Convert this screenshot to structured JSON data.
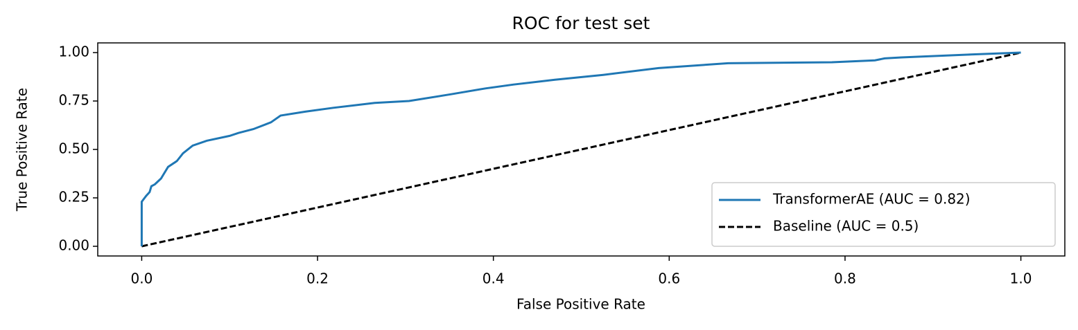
{
  "chart_data": {
    "type": "line",
    "title": "ROC for test set",
    "x_label": "False Positive Rate",
    "y_label": "True Positive Rate",
    "series": [
      {
        "name": "TransformerAE (AUC = 0.82)",
        "color": "#1f77b4",
        "linestyle": "solid",
        "x": [
          0,
          0,
          0.005,
          0.009,
          0.011,
          0.015,
          0.022,
          0.03,
          0.04,
          0.047,
          0.058,
          0.074,
          0.1,
          0.11,
          0.127,
          0.147,
          0.158,
          0.186,
          0.218,
          0.265,
          0.304,
          0.352,
          0.391,
          0.423,
          0.47,
          0.525,
          0.588,
          0.667,
          0.785,
          0.834,
          0.845,
          0.864,
          0.943,
          1
        ],
        "values": [
          0,
          0.23,
          0.26,
          0.28,
          0.31,
          0.32,
          0.35,
          0.41,
          0.44,
          0.48,
          0.52,
          0.545,
          0.57,
          0.585,
          0.605,
          0.64,
          0.675,
          0.695,
          0.715,
          0.74,
          0.75,
          0.785,
          0.815,
          0.835,
          0.86,
          0.885,
          0.92,
          0.945,
          0.95,
          0.96,
          0.97,
          0.975,
          0.99,
          1
        ]
      },
      {
        "name": "Baseline (AUC = 0.5)",
        "color": "#000000",
        "linestyle": "dashed",
        "x": [
          0,
          1
        ],
        "values": [
          0,
          1
        ]
      }
    ],
    "xlim": [
      -0.05,
      1.05
    ],
    "ylim": [
      -0.05,
      1.05
    ],
    "xticks": [
      {
        "value": 0,
        "label": "0.0"
      },
      {
        "value": 0.2,
        "label": "0.2"
      },
      {
        "value": 0.4,
        "label": "0.4"
      },
      {
        "value": 0.6,
        "label": "0.6"
      },
      {
        "value": 0.8,
        "label": "0.8"
      },
      {
        "value": 1,
        "label": "1.0"
      }
    ],
    "yticks": [
      {
        "value": 0,
        "label": "0.00"
      },
      {
        "value": 0.25,
        "label": "0.25"
      },
      {
        "value": 0.5,
        "label": "0.50"
      },
      {
        "value": 0.75,
        "label": "0.75"
      },
      {
        "value": 1,
        "label": "1.00"
      }
    ],
    "legend": "lower right",
    "grid": false
  }
}
